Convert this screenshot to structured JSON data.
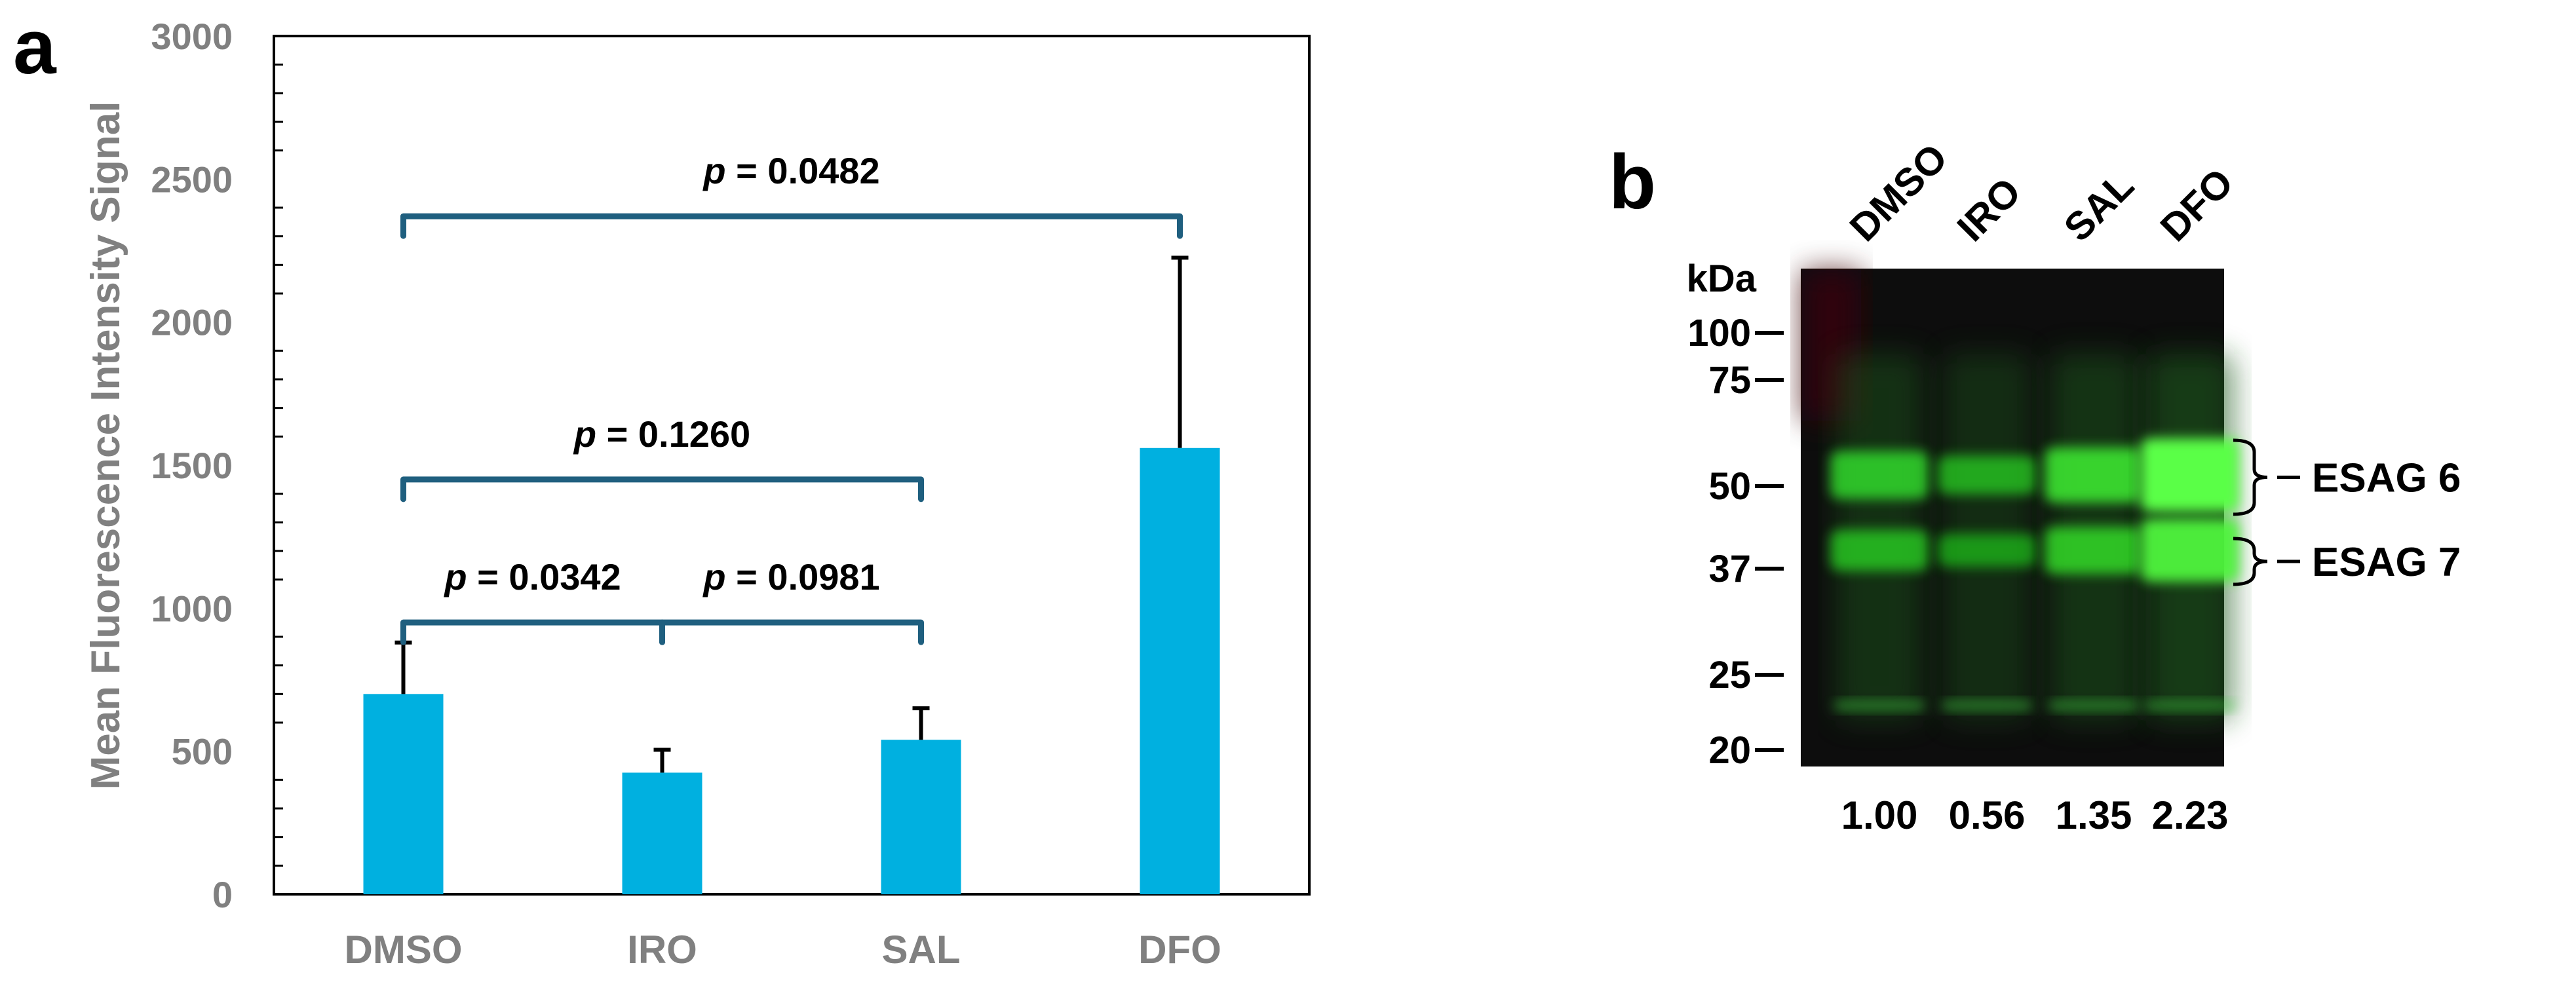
{
  "chart_data": [
    {
      "panel_label": "a",
      "type": "bar",
      "categories": [
        "DMSO",
        "IRO",
        "SAL",
        "DFO"
      ],
      "values": [
        700,
        425,
        540,
        1560
      ],
      "error_upper": [
        880,
        505,
        650,
        2225
      ],
      "ylabel": "Mean Fluorescence Intensity Signal",
      "ylim": [
        0,
        3000
      ],
      "yticks": [
        "0",
        "500",
        "1000",
        "1500",
        "2000",
        "2500",
        "3000"
      ],
      "bar_color": "#00B0E0",
      "bracket_color": "#1F5F7F",
      "grid": false,
      "annotations": [
        {
          "from": "DMSO",
          "to": "DFO",
          "level": 2370,
          "italic": "p",
          "text": " = 0.0482"
        },
        {
          "from": "DMSO",
          "to": "SAL",
          "level": 1450,
          "italic": "p",
          "text": " = 0.1260"
        },
        {
          "from": "DMSO",
          "to": "IRO",
          "level": 950,
          "italic": "p",
          "text": " = 0.0342"
        },
        {
          "from": "IRO",
          "to": "SAL",
          "level": 950,
          "italic": "p",
          "text": " = 0.0981"
        }
      ]
    }
  ],
  "blot": {
    "panel_label": "b",
    "lanes": [
      "DMSO",
      "IRO",
      "SAL",
      "DFO"
    ],
    "kda_label": "kDa",
    "markers": [
      "100",
      "75",
      "50",
      "37",
      "25",
      "20"
    ],
    "bands": [
      "ESAG 6",
      "ESAG 7"
    ],
    "quantification": [
      "1.00",
      "0.56",
      "1.35",
      "2.23"
    ],
    "intensity": [
      1.0,
      0.56,
      1.35,
      2.23
    ]
  }
}
